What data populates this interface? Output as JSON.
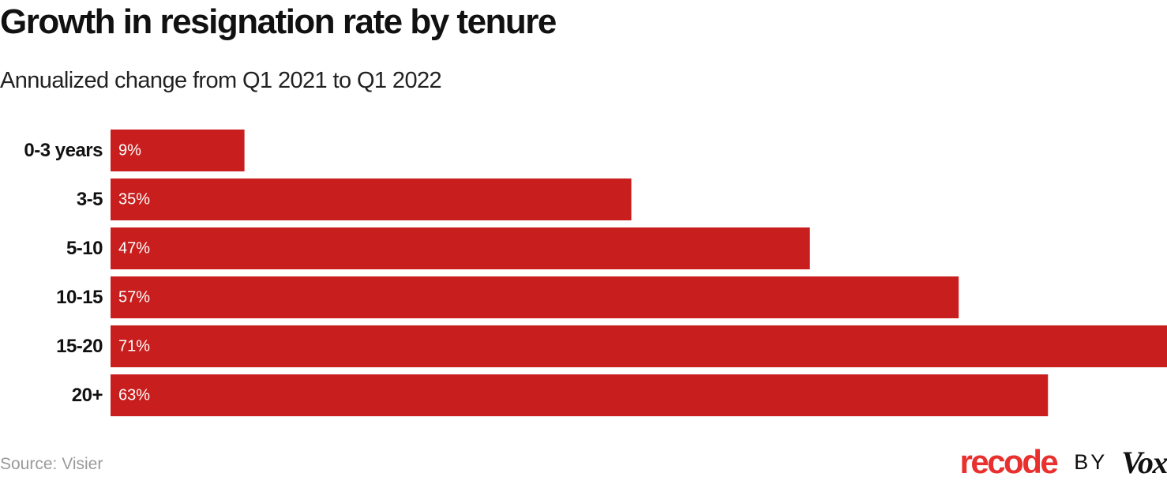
{
  "title": "Growth in resignation rate by tenure",
  "subtitle": "Annualized change from Q1 2021 to Q1 2022",
  "source": "Source: Visier",
  "branding": {
    "recode": "recode",
    "by": "BY",
    "vox": "Vox"
  },
  "colors": {
    "bar": "#c81e1e",
    "bar_label": "#ffffff",
    "category_label": "#111111"
  },
  "chart_data": {
    "type": "bar",
    "orientation": "horizontal",
    "title": "Growth in resignation rate by tenure",
    "subtitle": "Annualized change from Q1 2021 to Q1 2022",
    "xlabel": "",
    "ylabel": "",
    "categories": [
      "0-3 years",
      "3-5",
      "5-10",
      "10-15",
      "15-20",
      "20+"
    ],
    "values": [
      9,
      35,
      47,
      57,
      71,
      63
    ],
    "value_labels": [
      "9%",
      "35%",
      "47%",
      "57%",
      "71%",
      "63%"
    ],
    "xlim": [
      0,
      71
    ],
    "grid": false,
    "legend": "none"
  }
}
